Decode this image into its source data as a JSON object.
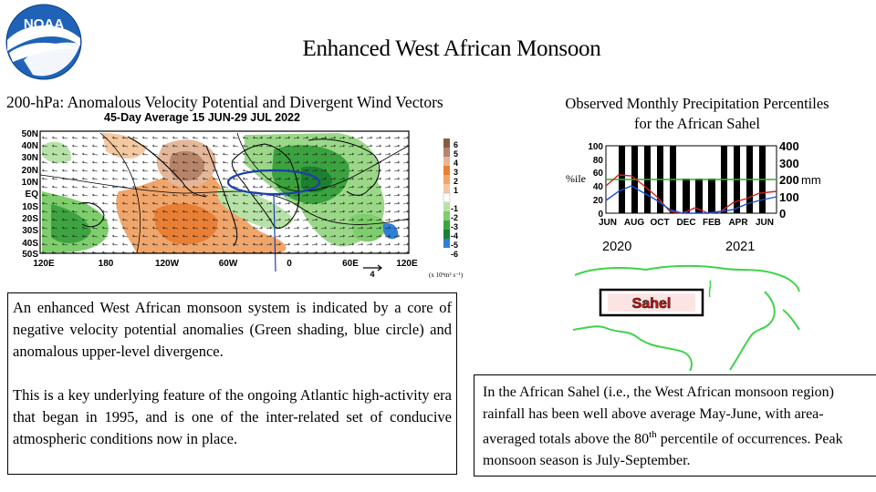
{
  "slide_title": "Enhanced West African Monsoon",
  "logo_text": "NOAA",
  "left_panel": {
    "heading": "200-hPa: Anomalous Velocity Potential and Divergent  Wind Vectors",
    "map_title": "45-Day Average 15 JUN-29 JUL 2022",
    "lat_labels": [
      "50N",
      "40N",
      "30N",
      "20N",
      "10N",
      "EQ",
      "10S",
      "20S",
      "30S",
      "40S",
      "50S"
    ],
    "lon_labels": [
      "120E",
      "180",
      "120W",
      "60W",
      "0",
      "60E",
      "120E"
    ],
    "colorbar_labels": [
      "6",
      "5",
      "4",
      "3",
      "2",
      "1",
      "-1",
      "-2",
      "-3",
      "-4",
      "-5",
      "-6"
    ],
    "units": "(x 10⁶m² s⁻¹)",
    "scale_arrow": "4"
  },
  "right_panel": {
    "heading_line1": "Observed Monthly Precipitation Percentiles",
    "heading_line2": "for the African Sahel",
    "chart": {
      "y_left_label": "%ile",
      "y_right_label": "mm",
      "y_left_ticks": [
        "100",
        "80",
        "60",
        "40",
        "20",
        "0"
      ],
      "y_right_ticks": [
        "400",
        "300",
        "200",
        "100",
        "0"
      ],
      "x_ticks": [
        "JUN",
        "AUG",
        "OCT",
        "DEC",
        "FEB",
        "APR",
        "JUN"
      ],
      "years": [
        "2020",
        "2021"
      ]
    },
    "sahel_label": "Sahel"
  },
  "text_box_1": {
    "paragraph_1": "An enhanced West African monsoon system is indicated by a core of negative velocity potential anomalies (Green shading, blue circle) and anomalous upper-level divergence.",
    "paragraph_2": "This is a key underlying feature of the ongoing Atlantic high-activity era that began in 1995, and is one of the  inter-related set of conducive atmospheric conditions now in place."
  },
  "text_box_2": {
    "text_before_sup": "In the African Sahel  (i.e., the West African monsoon region) rainfall  has been well above average May-June, with area-averaged totals above the 80",
    "sup": "th",
    "text_after_sup": " percentile of occurrences. Peak monsoon season is July-September."
  }
}
